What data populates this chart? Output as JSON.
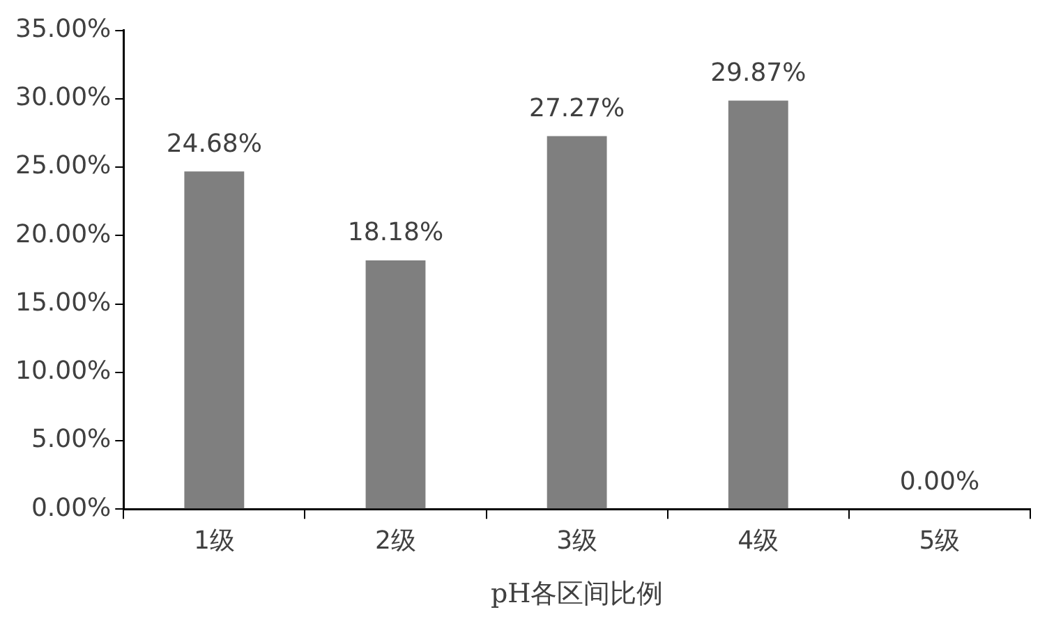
{
  "chart_data": {
    "type": "bar",
    "xlabel": "pH各区间比例",
    "categories": [
      "1级",
      "2级",
      "3级",
      "4级",
      "5级"
    ],
    "values": [
      24.68,
      18.18,
      27.27,
      29.87,
      0
    ],
    "value_labels": [
      "24.68%",
      "18.18%",
      "27.27%",
      "29.87%",
      "0.00%"
    ],
    "color": "#7f7f7f",
    "ylim": [
      0,
      35
    ],
    "yticks": [
      {
        "value": 0,
        "label": "0.00%"
      },
      {
        "value": 5,
        "label": "5.00%"
      },
      {
        "value": 10,
        "label": "10.00%"
      },
      {
        "value": 15,
        "label": "15.00%"
      },
      {
        "value": 20,
        "label": "20.00%"
      },
      {
        "value": 25,
        "label": "25.00%"
      },
      {
        "value": 30,
        "label": "30.00%"
      },
      {
        "value": 35,
        "label": "35.00%"
      }
    ],
    "grid": false,
    "legend": false
  }
}
